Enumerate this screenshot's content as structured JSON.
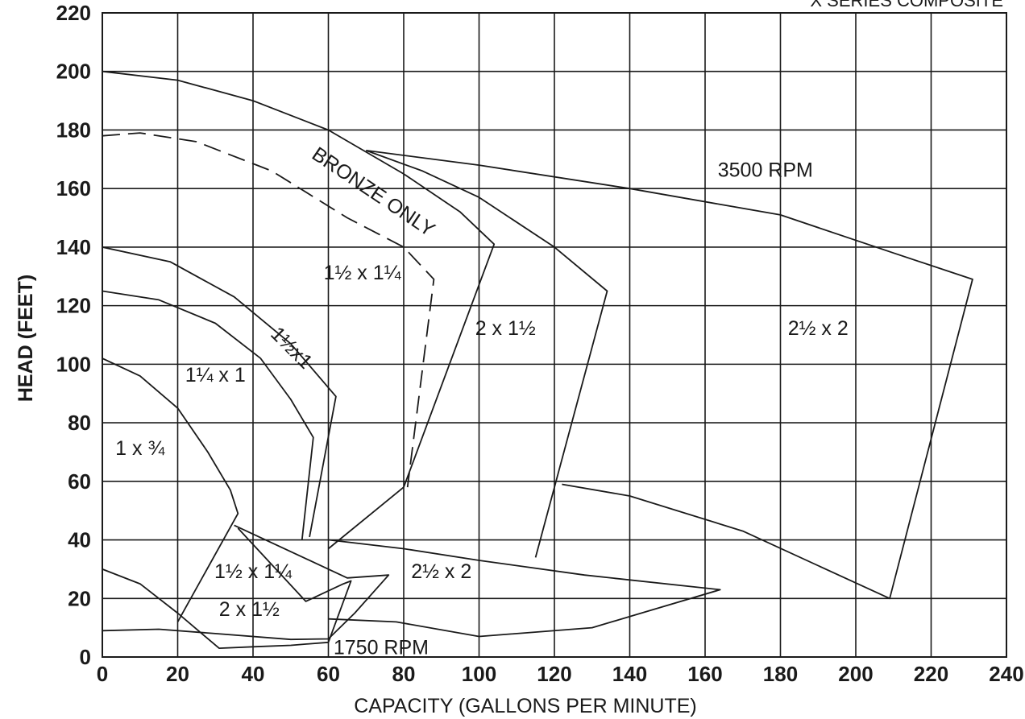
{
  "header_fragment": "X SERIES COMPOSITE",
  "chart_data": {
    "type": "line",
    "title": "",
    "xlabel": "CAPACITY (GALLONS PER MINUTE)",
    "ylabel": "HEAD (FEET)",
    "xlim": [
      0,
      240
    ],
    "ylim": [
      0,
      220
    ],
    "xticks": [
      0,
      20,
      40,
      60,
      80,
      100,
      120,
      140,
      160,
      180,
      200,
      220,
      240
    ],
    "yticks": [
      0,
      20,
      40,
      60,
      80,
      100,
      120,
      140,
      160,
      180,
      200,
      220
    ],
    "grid": true,
    "series": [
      {
        "name": "1 x ¾",
        "group": "3500 RPM",
        "x": [
          0,
          10,
          20,
          28,
          34,
          36,
          20
        ],
        "y": [
          102,
          96,
          85,
          70,
          57,
          49,
          12
        ]
      },
      {
        "name": "1¼ x 1",
        "group": "3500 RPM",
        "x": [
          0,
          15,
          30,
          42,
          50,
          56,
          53
        ],
        "y": [
          125,
          122,
          114,
          102,
          88,
          75,
          40
        ]
      },
      {
        "name": "1½ x 1",
        "group": "3500 RPM",
        "x": [
          0,
          18,
          35,
          50,
          62,
          55
        ],
        "y": [
          140,
          135,
          123,
          107,
          89,
          41
        ]
      },
      {
        "name": "1½ x 1¼",
        "group": "3500 RPM",
        "x": [
          0,
          20,
          40,
          60,
          80,
          95,
          104,
          80,
          60
        ],
        "y": [
          200,
          197,
          190,
          180,
          165,
          152,
          141,
          58,
          37
        ]
      },
      {
        "name": "BRONZE ONLY",
        "group": "3500 RPM",
        "style": "dashed",
        "x": [
          0,
          10,
          25,
          45,
          65,
          80,
          88,
          81
        ],
        "y": [
          178,
          179,
          176,
          166,
          150,
          140,
          129,
          58
        ]
      },
      {
        "name": "2 x 1½",
        "group": "3500 RPM",
        "x": [
          70,
          85,
          100,
          120,
          134,
          115
        ],
        "y": [
          173,
          166,
          157,
          140,
          125,
          34
        ]
      },
      {
        "name": "2½ x 2",
        "group": "3500 RPM",
        "x": [
          70,
          100,
          140,
          180,
          210,
          231,
          209,
          170,
          140,
          122
        ],
        "y": [
          173,
          168,
          160,
          151,
          138,
          129,
          20,
          43,
          55,
          59
        ]
      },
      {
        "name": "1½ x 1¼",
        "group": "1750 RPM",
        "x": [
          0,
          10,
          20,
          31,
          40,
          50,
          55,
          60,
          66,
          64,
          54,
          36
        ],
        "y": [
          30,
          25,
          15,
          3,
          3.5,
          4,
          4.5,
          5,
          26,
          25,
          19,
          44
        ]
      },
      {
        "name": "2 x 1½",
        "group": "1750 RPM",
        "x": [
          0,
          15,
          30,
          50,
          60,
          67,
          76,
          65,
          35
        ],
        "y": [
          9,
          9.5,
          8,
          6,
          6.2,
          15,
          28,
          27,
          45
        ]
      },
      {
        "name": "2½ x 2",
        "group": "1750 RPM",
        "x": [
          60,
          80,
          100,
          128,
          164,
          130,
          100,
          78,
          60
        ],
        "y": [
          40,
          37,
          33,
          28,
          23,
          10,
          7,
          12,
          13
        ]
      }
    ],
    "annotations": [
      {
        "text": "3500 RPM",
        "x": 176,
        "y": 164
      },
      {
        "text": "BRONZE ONLY",
        "x": 71,
        "y": 157
      },
      {
        "text": "1½ x 1¼",
        "x": 69,
        "y": 129
      },
      {
        "text": "2 x 1½",
        "x": 107,
        "y": 110
      },
      {
        "text": "2½ x 2",
        "x": 190,
        "y": 110
      },
      {
        "text": "1½x1",
        "x": 49,
        "y": 104
      },
      {
        "text": "1¼ x 1",
        "x": 30,
        "y": 94
      },
      {
        "text": "1 x ¾",
        "x": 10,
        "y": 69
      },
      {
        "text": "1½ x 1¼",
        "x": 40,
        "y": 27
      },
      {
        "text": "2½ x 2",
        "x": 90,
        "y": 27
      },
      {
        "text": "2 x 1½",
        "x": 39,
        "y": 14
      },
      {
        "text": "1750 RPM",
        "x": 74,
        "y": 1
      }
    ]
  }
}
